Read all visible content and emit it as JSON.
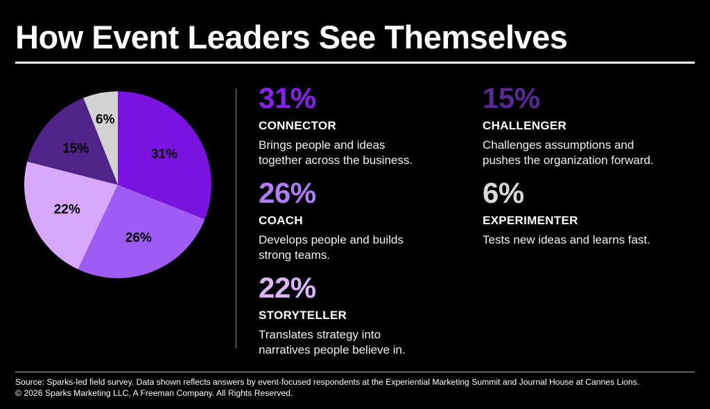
{
  "title": "How Event Leaders See Themselves",
  "chart_data": {
    "type": "pie",
    "slices": [
      {
        "label": "31%",
        "value": 31,
        "color": "#7a12e0"
      },
      {
        "label": "26%",
        "value": 26,
        "color": "#9f5cf5"
      },
      {
        "label": "22%",
        "value": 22,
        "color": "#d7a8fb"
      },
      {
        "label": "15%",
        "value": 15,
        "color": "#4f2387"
      },
      {
        "label": "6%",
        "value": 6,
        "color": "#d2d2d2"
      }
    ]
  },
  "items": [
    {
      "pct": "31%",
      "name": "CONNECTOR",
      "desc1": "Brings people and ideas",
      "desc2": "together across the business.",
      "color": "#8a1ff2"
    },
    {
      "pct": "26%",
      "name": "COACH",
      "desc1": "Develops people and builds",
      "desc2": "strong teams.",
      "color": "#b17cf8"
    },
    {
      "pct": "22%",
      "name": "STORYTELLER",
      "desc1": "Translates strategy into",
      "desc2": "narratives people believe in.",
      "color": "#dbb4fb"
    },
    {
      "pct": "15%",
      "name": "CHALLENGER",
      "desc1": "Challenges assumptions and",
      "desc2": "pushes the organization forward.",
      "color": "#5a2796"
    },
    {
      "pct": "6%",
      "name": "EXPERIMENTER",
      "desc1": "Tests new ideas and learns fast.",
      "desc2": "",
      "color": "#d9d9d9"
    }
  ],
  "footer": {
    "source": "Source: Sparks-led field survey. Data shown reflects answers by event-focused respondents at the Experiential Marketing Summit and Journal House at Cannes Lions.",
    "copyright": "© 2026 Sparks Marketing LLC, A Freeman Company. All Rights Reserved."
  }
}
